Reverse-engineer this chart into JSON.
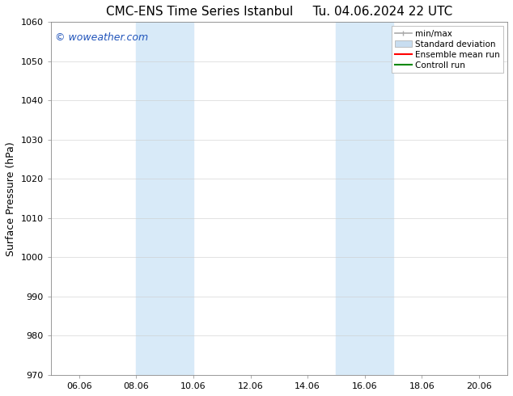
{
  "title_left": "CMC-ENS Time Series Istanbul",
  "title_right": "Tu. 04.06.2024 22 UTC",
  "ylabel": "Surface Pressure (hPa)",
  "xlim": [
    5.0,
    21.0
  ],
  "ylim": [
    970,
    1060
  ],
  "yticks": [
    970,
    980,
    990,
    1000,
    1010,
    1020,
    1030,
    1040,
    1050,
    1060
  ],
  "xticks": [
    6.0,
    8.0,
    10.0,
    12.0,
    14.0,
    16.0,
    18.0,
    20.0
  ],
  "xticklabels": [
    "06.06",
    "08.06",
    "10.06",
    "12.06",
    "14.06",
    "16.06",
    "18.06",
    "20.06"
  ],
  "watermark": "© woweather.com",
  "watermark_color": "#2255bb",
  "bg_color": "#ffffff",
  "plot_bg_color": "#ffffff",
  "shaded_bands": [
    {
      "xmin": 8.0,
      "xmax": 10.0,
      "color": "#d8eaf8"
    },
    {
      "xmin": 15.0,
      "xmax": 17.0,
      "color": "#d8eaf8"
    }
  ],
  "legend_entries": [
    {
      "label": "min/max",
      "color": "#aaaaaa",
      "style": "minmax"
    },
    {
      "label": "Standard deviation",
      "color": "#c8ddf0",
      "style": "fill"
    },
    {
      "label": "Ensemble mean run",
      "color": "#ff0000",
      "style": "line"
    },
    {
      "label": "Controll run",
      "color": "#008800",
      "style": "line"
    }
  ],
  "title_fontsize": 11,
  "axis_fontsize": 9,
  "tick_fontsize": 8,
  "watermark_fontsize": 9,
  "legend_fontsize": 7.5
}
